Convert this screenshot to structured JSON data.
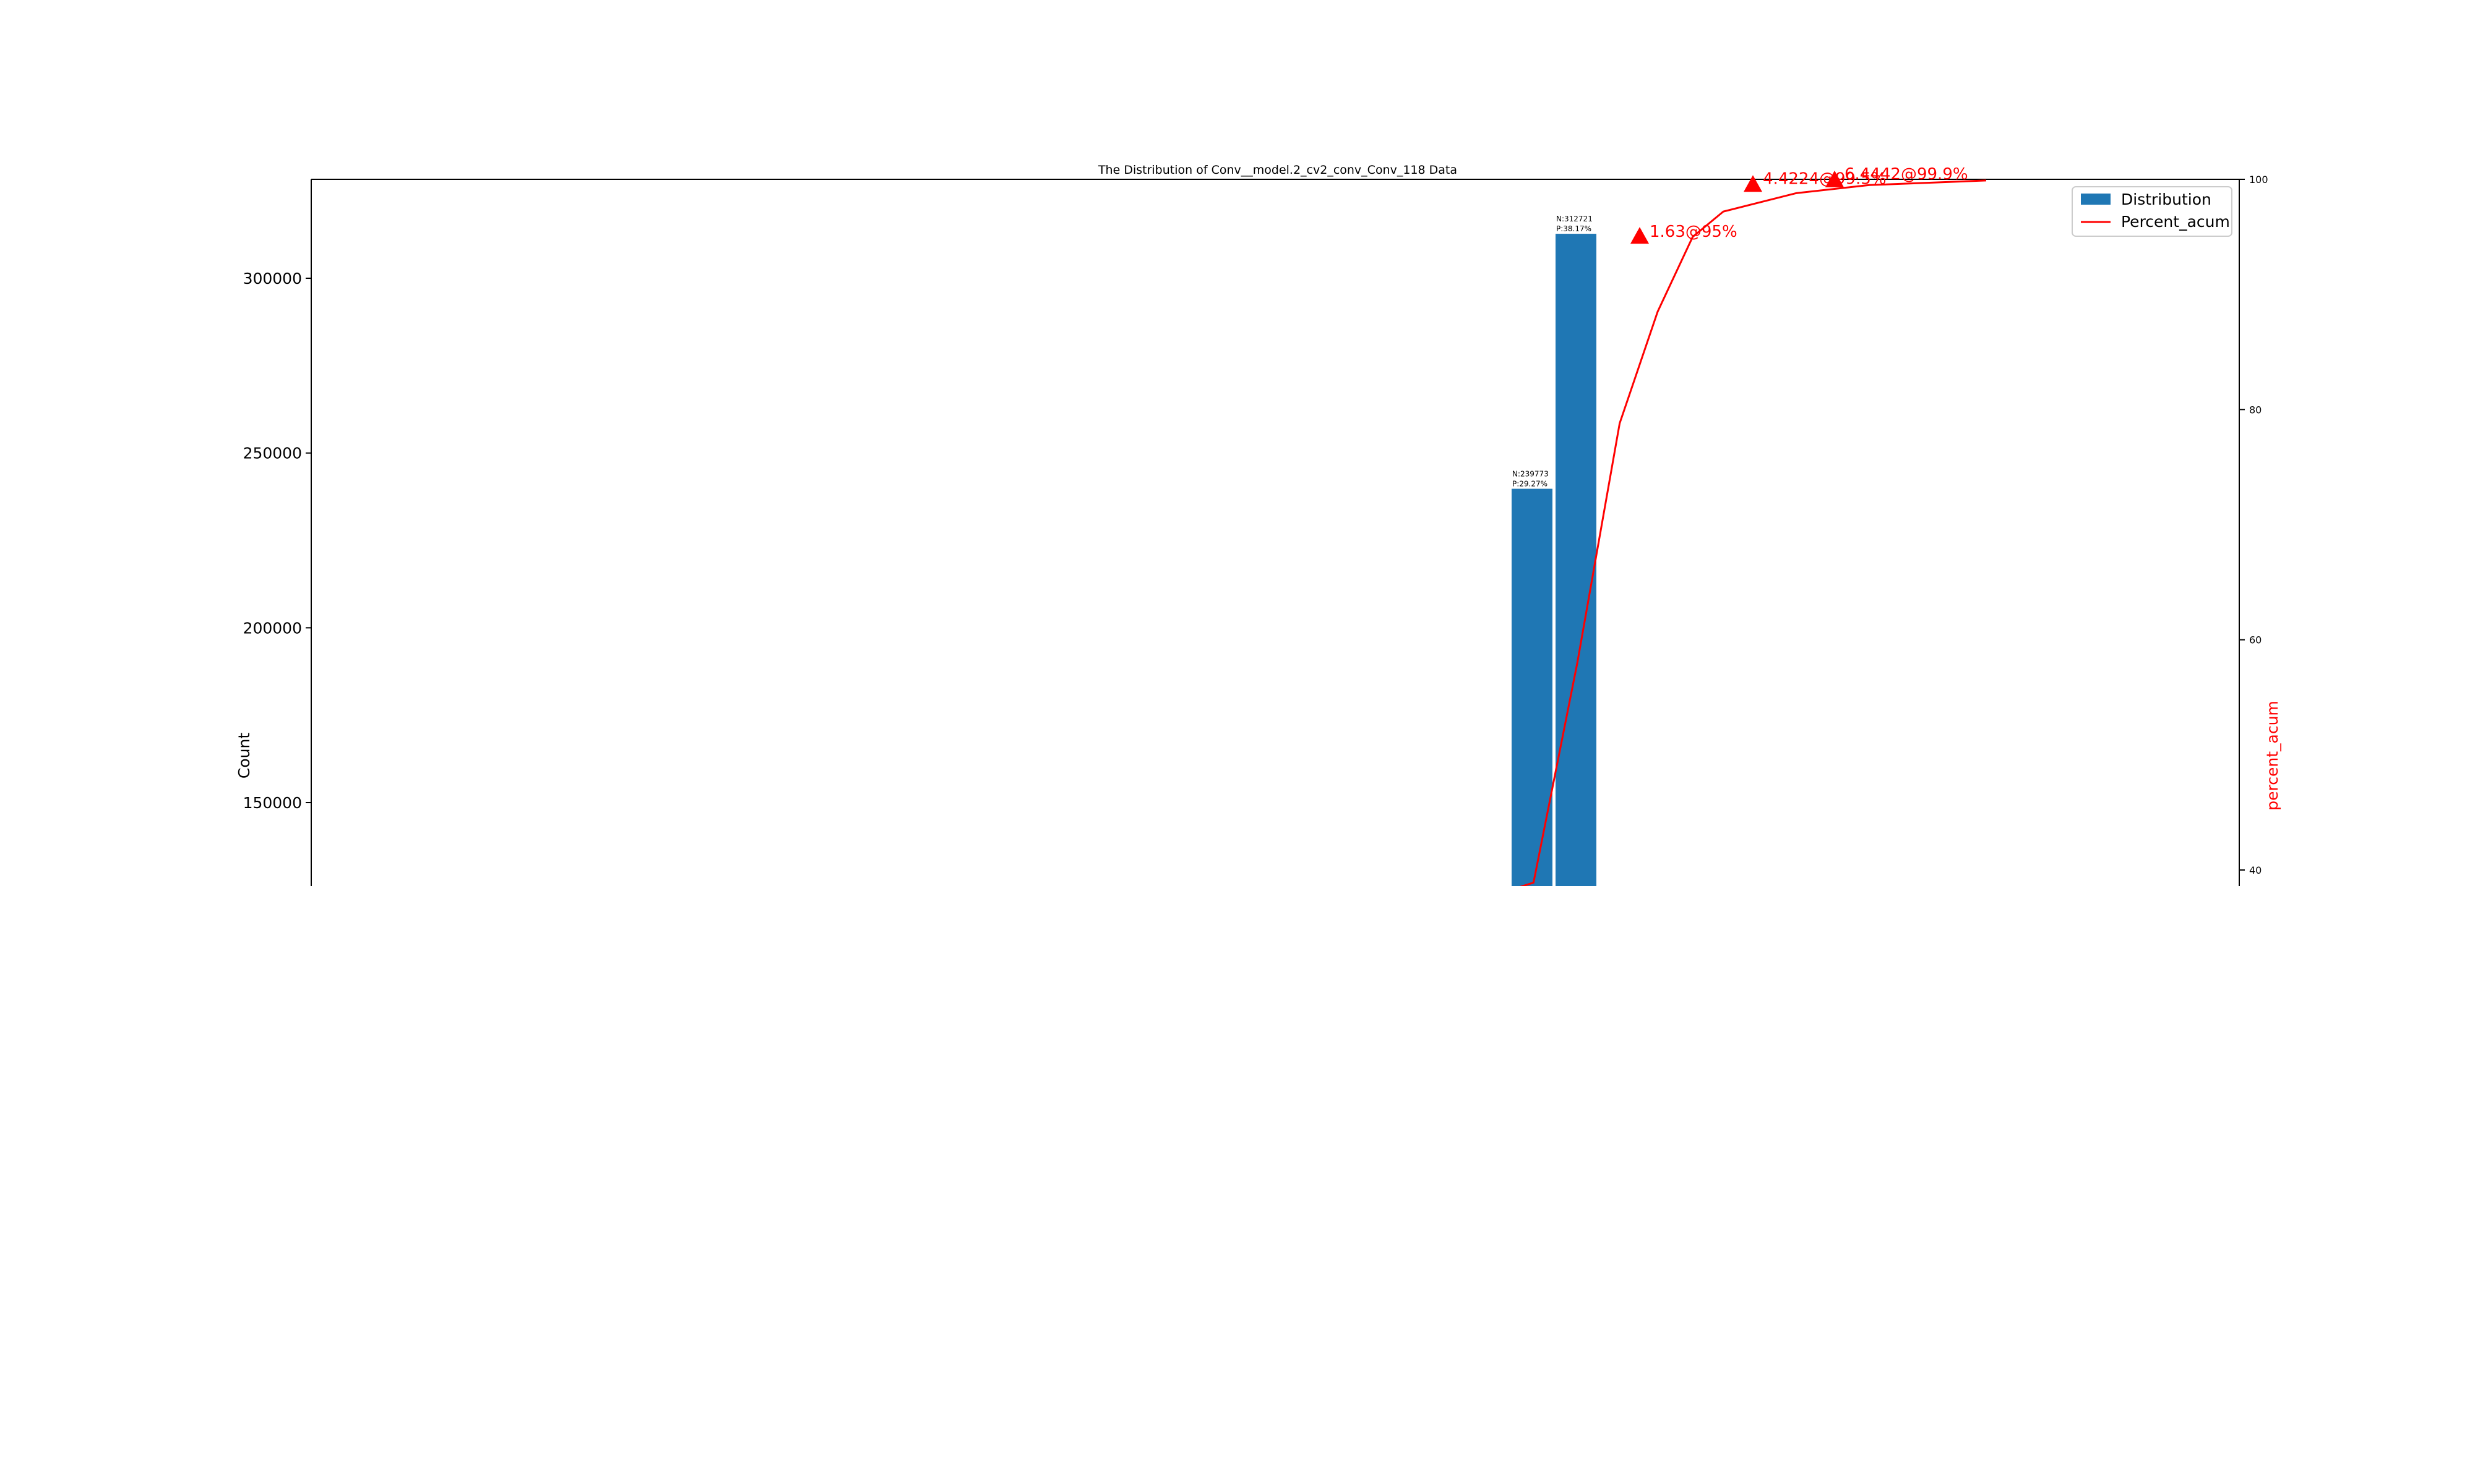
{
  "chart_data": {
    "type": "bar",
    "title": "The Distribution of Conv__model.2_cv2_conv_Conv_118 Data",
    "ylabel": "Count",
    "y2label": "percent_acum",
    "ylim": [
      125000,
      328000
    ],
    "y2lim": [
      38.3,
      100
    ],
    "yticks": [
      "150000",
      "200000",
      "250000",
      "300000"
    ],
    "y2ticks": [
      "40",
      "60",
      "80",
      "100"
    ],
    "grid": false,
    "legend_position": "top-right",
    "colors": {
      "bar": "#1f77b4",
      "line": "#ff0000"
    },
    "series": [
      {
        "name": "Distribution",
        "kind": "bar",
        "bars": [
          {
            "value": 239773,
            "label_n": "N:239773",
            "label_p": "P:29.27%"
          },
          {
            "value": 312721,
            "label_n": "N:312721",
            "label_p": "P:38.17%"
          }
        ]
      },
      {
        "name": "Percent_acum",
        "kind": "line",
        "points": [
          [
            38.3,
            38.3
          ],
          [
            38.6,
            38.9
          ],
          [
            39.2,
            58.0
          ],
          [
            39.78,
            78.8
          ],
          [
            40.3,
            88.5
          ],
          [
            40.78,
            95.0
          ],
          [
            41.2,
            97.2
          ],
          [
            42.2,
            98.8
          ],
          [
            43.2,
            99.5
          ],
          [
            44.8,
            99.9
          ]
        ]
      }
    ],
    "annotations": [
      {
        "text": "1.63@95%",
        "x": 41.0,
        "y": 95.0
      },
      {
        "text": "4.4224@99.5%",
        "x": 43.4,
        "y": 99.5
      },
      {
        "text": "6.4442@99.9%",
        "x": 45.2,
        "y": 99.9
      }
    ]
  }
}
